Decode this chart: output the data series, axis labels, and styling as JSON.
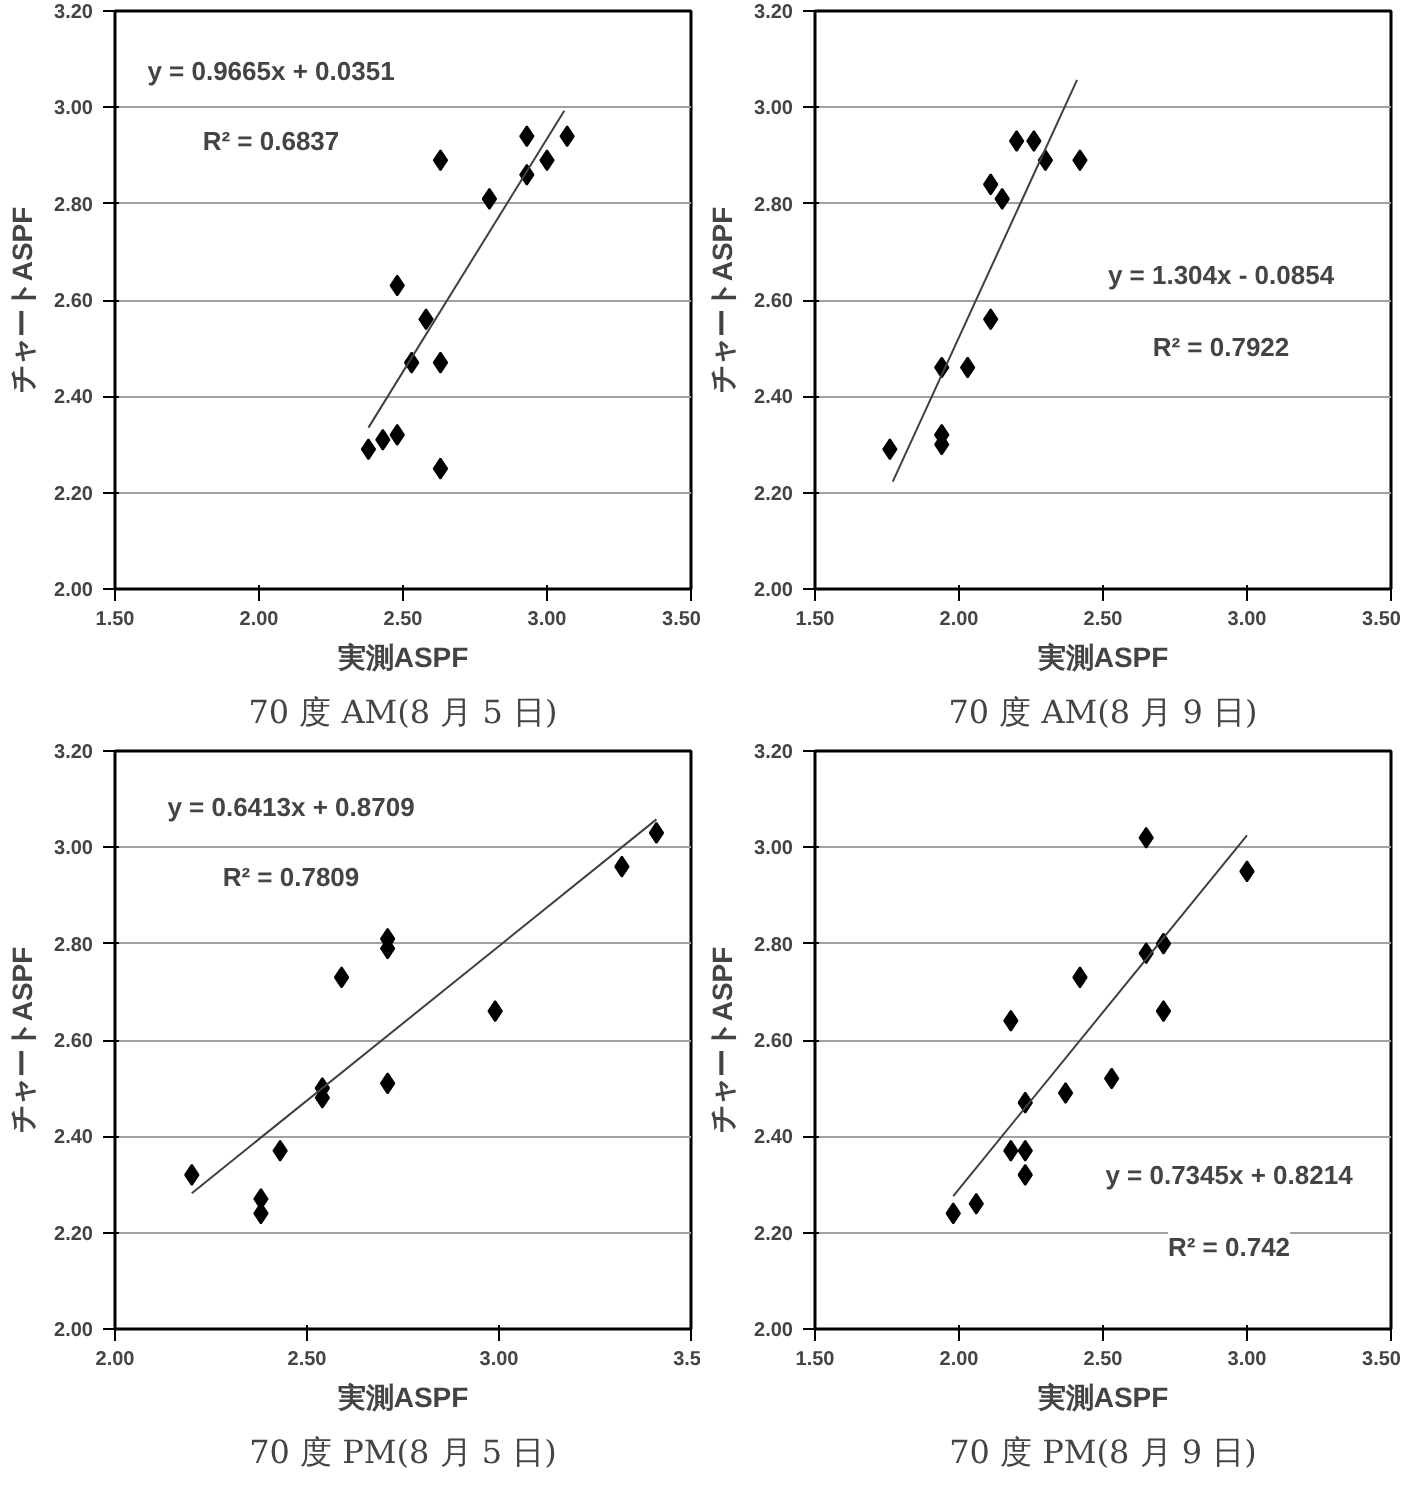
{
  "chart_data": [
    {
      "type": "scatter",
      "title": "70 度 AM(8 月 5 日)",
      "xlabel": "実測ASPF",
      "ylabel": "チャートASPF",
      "grid": "y",
      "xlim": [
        1.5,
        3.5
      ],
      "xticks": [
        {
          "value": 1.5,
          "label": "1.50"
        },
        {
          "value": 2,
          "label": "2.00"
        },
        {
          "value": 2.5,
          "label": "2.50"
        },
        {
          "value": 3,
          "label": "3.00"
        },
        {
          "value": 3.5,
          "label": "3.50"
        }
      ],
      "ylim": [
        2,
        3.2
      ],
      "yticks": [
        {
          "value": 2,
          "label": "2.00"
        },
        {
          "value": 2.2,
          "label": "2.20"
        },
        {
          "value": 2.4,
          "label": "2.40"
        },
        {
          "value": 2.6,
          "label": "2.60"
        },
        {
          "value": 2.8,
          "label": "2.80"
        },
        {
          "value": 3,
          "label": "3.00"
        },
        {
          "value": 3.2,
          "label": "3.20"
        }
      ],
      "series": [
        {
          "marker": "diamond",
          "color": "#000000",
          "x": [
            2.38,
            2.43,
            2.48,
            2.48,
            2.53,
            2.58,
            2.63,
            2.63,
            2.63,
            2.8,
            2.93,
            2.93,
            3.0,
            3.07
          ],
          "values": [
            2.29,
            2.31,
            2.32,
            2.63,
            2.47,
            2.56,
            2.47,
            2.89,
            2.25,
            2.81,
            2.94,
            2.86,
            2.89,
            2.94
          ]
        },
        {
          "type": "line",
          "color": "#404040",
          "x": [
            2.38,
            3.06
          ],
          "values": [
            2.335,
            2.993
          ]
        }
      ],
      "annotations": [
        "y = 0.9665x + 0.0351",
        "R² = 0.6837"
      ]
    },
    {
      "type": "scatter",
      "title": "70 度 AM(8 月 9 日)",
      "xlabel": "実測ASPF",
      "ylabel": "チャートASPF",
      "grid": "y",
      "xlim": [
        1.5,
        3.5
      ],
      "xticks": [
        {
          "value": 1.5,
          "label": "1.50"
        },
        {
          "value": 2,
          "label": "2.00"
        },
        {
          "value": 2.5,
          "label": "2.50"
        },
        {
          "value": 3,
          "label": "3.00"
        },
        {
          "value": 3.5,
          "label": "3.50"
        }
      ],
      "ylim": [
        2,
        3.2
      ],
      "yticks": [
        {
          "value": 2,
          "label": "2.00"
        },
        {
          "value": 2.2,
          "label": "2.20"
        },
        {
          "value": 2.4,
          "label": "2.40"
        },
        {
          "value": 2.6,
          "label": "2.60"
        },
        {
          "value": 2.8,
          "label": "2.80"
        },
        {
          "value": 3,
          "label": "3.00"
        },
        {
          "value": 3.2,
          "label": "3.20"
        }
      ],
      "series": [
        {
          "marker": "diamond",
          "color": "#000000",
          "x": [
            1.76,
            1.94,
            1.94,
            1.94,
            2.03,
            2.11,
            2.11,
            2.15,
            2.2,
            2.26,
            2.3,
            2.42
          ],
          "values": [
            2.29,
            2.32,
            2.3,
            2.46,
            2.46,
            2.56,
            2.84,
            2.81,
            2.93,
            2.93,
            2.89,
            2.89
          ]
        },
        {
          "type": "line",
          "color": "#404040",
          "x": [
            1.77,
            2.41
          ],
          "values": [
            2.223,
            3.057
          ]
        }
      ],
      "annotations": [
        "y = 1.304x - 0.0854",
        "R² = 0.7922"
      ]
    },
    {
      "type": "scatter",
      "title": "70 度 PM(8 月 5 日)",
      "xlabel": "実測ASPF",
      "ylabel": "チャートASPF",
      "grid": "y",
      "xlim": [
        2,
        3.5
      ],
      "xticks": [
        {
          "value": 2,
          "label": "2.00"
        },
        {
          "value": 2.5,
          "label": "2.50"
        },
        {
          "value": 3,
          "label": "3.00"
        },
        3.5
      ],
      "ylim": [
        2,
        3.2
      ],
      "yticks": [
        {
          "value": 2,
          "label": "2.00"
        },
        {
          "value": 2.2,
          "label": "2.20"
        },
        {
          "value": 2.4,
          "label": "2.40"
        },
        {
          "value": 2.6,
          "label": "2.60"
        },
        {
          "value": 2.8,
          "label": "2.80"
        },
        {
          "value": 3,
          "label": "3.00"
        },
        {
          "value": 3.2,
          "label": "3.20"
        }
      ],
      "series": [
        {
          "marker": "diamond",
          "color": "#000000",
          "x": [
            2.2,
            2.38,
            2.38,
            2.43,
            2.54,
            2.54,
            2.59,
            2.71,
            2.71,
            2.71,
            2.99,
            3.32,
            3.41
          ],
          "values": [
            2.32,
            2.27,
            2.24,
            2.37,
            2.48,
            2.5,
            2.73,
            2.81,
            2.79,
            2.51,
            2.66,
            2.96,
            3.03
          ]
        },
        {
          "type": "line",
          "color": "#404040",
          "x": [
            2.2,
            3.41
          ],
          "values": [
            2.282,
            3.058
          ]
        }
      ],
      "annotations": [
        "y = 0.6413x + 0.8709",
        "R² = 0.7809"
      ]
    },
    {
      "type": "scatter",
      "title": "70 度 PM(8 月 9 日)",
      "xlabel": "実測ASPF",
      "ylabel": "チャートASPF",
      "grid": "y",
      "xlim": [
        1.5,
        3.5
      ],
      "xticks": [
        {
          "value": 1.5,
          "label": "1.50"
        },
        {
          "value": 2,
          "label": "2.00"
        },
        {
          "value": 2.5,
          "label": "2.50"
        },
        {
          "value": 3,
          "label": "3.00"
        },
        {
          "value": 3.5,
          "label": "3.50"
        }
      ],
      "ylim": [
        2,
        3.2
      ],
      "yticks": [
        {
          "value": 2,
          "label": "2.00"
        },
        {
          "value": 2.2,
          "label": "2.20"
        },
        {
          "value": 2.4,
          "label": "2.40"
        },
        {
          "value": 2.6,
          "label": "2.60"
        },
        {
          "value": 2.8,
          "label": "2.80"
        },
        {
          "value": 3,
          "label": "3.00"
        },
        {
          "value": 3.2,
          "label": "3.20"
        }
      ],
      "series": [
        {
          "marker": "diamond",
          "color": "#000000",
          "x": [
            1.98,
            2.06,
            2.18,
            2.18,
            2.23,
            2.23,
            2.23,
            2.37,
            2.42,
            2.53,
            2.65,
            2.65,
            2.71,
            2.71,
            3.0
          ],
          "values": [
            2.24,
            2.26,
            2.64,
            2.37,
            2.37,
            2.32,
            2.47,
            2.49,
            2.73,
            2.52,
            3.02,
            2.78,
            2.8,
            2.66,
            2.95
          ]
        },
        {
          "type": "line",
          "color": "#404040",
          "x": [
            1.98,
            3.0
          ],
          "values": [
            2.276,
            3.025
          ]
        }
      ],
      "annotations": [
        "y = 0.7345x + 0.8214",
        "R² = 0.742"
      ]
    }
  ]
}
